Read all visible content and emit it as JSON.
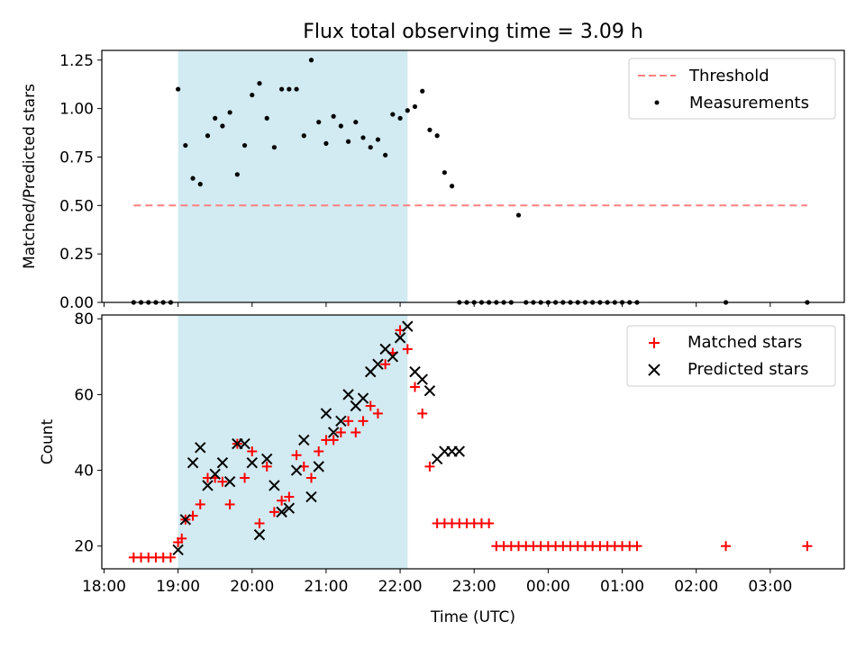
{
  "chart_data": {
    "type": "scatter",
    "title": "Flux total observing time = 3.09 h",
    "xlabel": "Time (UTC)",
    "x_ticks": [
      "18:00",
      "19:00",
      "20:00",
      "21:00",
      "22:00",
      "23:00",
      "00:00",
      "01:00",
      "02:00",
      "03:00"
    ],
    "shaded_interval": {
      "start_hours": 19.0,
      "end_hours": 22.1,
      "color": "#add8e6"
    },
    "colors": {
      "threshold": "#ff8080",
      "measurements": "#000000",
      "matched": "#ff0000",
      "predicted": "#000000",
      "shade": "#add8e6"
    },
    "panels": [
      {
        "name": "ratio",
        "ylabel": "Matched/Predicted stars",
        "ylim": [
          0,
          1.3
        ],
        "yticks": [
          "0.00",
          "0.25",
          "0.50",
          "0.75",
          "1.00",
          "1.25"
        ],
        "ytick_values": [
          0,
          0.25,
          0.5,
          0.75,
          1.0,
          1.25
        ],
        "legend_position": "top-right",
        "threshold": {
          "label": "Threshold",
          "value": 0.5,
          "x_start": 18.4,
          "x_end": 27.5,
          "style": "dashed"
        },
        "measurements": {
          "label": "Measurements",
          "x": [
            18.4,
            18.5,
            18.6,
            18.7,
            18.8,
            18.9,
            19.0,
            19.1,
            19.2,
            19.3,
            19.4,
            19.5,
            19.6,
            19.7,
            19.8,
            19.9,
            20.0,
            20.1,
            20.2,
            20.3,
            20.4,
            20.5,
            20.6,
            20.7,
            20.8,
            20.9,
            21.0,
            21.1,
            21.2,
            21.3,
            21.4,
            21.5,
            21.6,
            21.7,
            21.8,
            21.9,
            22.0,
            22.1,
            22.2,
            22.3,
            22.4,
            22.5,
            22.6,
            22.7,
            22.8,
            22.9,
            23.0,
            23.1,
            23.2,
            23.3,
            23.4,
            23.5,
            23.6,
            23.7,
            23.8,
            23.9,
            24.0,
            24.1,
            24.2,
            24.3,
            24.4,
            24.5,
            24.6,
            24.7,
            24.8,
            24.9,
            25.0,
            25.1,
            25.2,
            26.4,
            27.5
          ],
          "y": [
            0,
            0,
            0,
            0,
            0,
            0,
            1.1,
            0.81,
            0.64,
            0.61,
            0.86,
            0.95,
            0.91,
            0.98,
            0.66,
            0.81,
            1.07,
            1.13,
            0.95,
            0.8,
            1.1,
            1.1,
            1.1,
            0.86,
            1.25,
            0.93,
            0.82,
            0.96,
            0.91,
            0.83,
            0.93,
            0.85,
            0.8,
            0.84,
            0.76,
            0.97,
            0.95,
            0.99,
            1.01,
            1.09,
            0.89,
            0.86,
            0.67,
            0.6,
            0,
            0,
            0,
            0,
            0,
            0,
            0,
            0,
            0.45,
            0,
            0,
            0,
            0,
            0,
            0,
            0,
            0,
            0,
            0,
            0,
            0,
            0,
            0,
            0,
            0,
            0,
            0
          ]
        }
      },
      {
        "name": "counts",
        "ylabel": "Count",
        "ylim": [
          14,
          81
        ],
        "yticks": [
          "20",
          "40",
          "60",
          "80"
        ],
        "ytick_values": [
          20,
          40,
          60,
          80
        ],
        "legend_position": "top-right",
        "matched": {
          "label": "Matched stars",
          "x": [
            18.4,
            18.5,
            18.6,
            18.7,
            18.8,
            18.9,
            19.0,
            19.05,
            19.1,
            19.2,
            19.3,
            19.4,
            19.5,
            19.6,
            19.7,
            19.8,
            19.9,
            20.0,
            20.1,
            20.2,
            20.3,
            20.4,
            20.5,
            20.6,
            20.7,
            20.8,
            20.9,
            21.0,
            21.1,
            21.2,
            21.3,
            21.4,
            21.5,
            21.6,
            21.7,
            21.8,
            21.9,
            22.0,
            22.1,
            22.2,
            22.3,
            22.4,
            22.5,
            22.6,
            22.7,
            22.8,
            22.9,
            23.0,
            23.1,
            23.2,
            23.3,
            23.4,
            23.5,
            23.6,
            23.7,
            23.8,
            23.9,
            24.0,
            24.1,
            24.2,
            24.3,
            24.4,
            24.5,
            24.6,
            24.7,
            24.8,
            24.9,
            25.0,
            25.1,
            25.2,
            26.4,
            27.5
          ],
          "y": [
            17,
            17,
            17,
            17,
            17,
            17,
            21,
            22,
            27,
            28,
            31,
            38,
            38,
            37,
            31,
            47,
            38,
            45,
            26,
            41,
            29,
            32,
            33,
            44,
            41,
            38,
            45,
            48,
            48,
            50,
            53,
            50,
            53,
            57,
            55,
            68,
            71,
            77,
            72,
            62,
            55,
            41,
            26,
            26,
            26,
            26,
            26,
            26,
            26,
            26,
            20,
            20,
            20,
            20,
            20,
            20,
            20,
            20,
            20,
            20,
            20,
            20,
            20,
            20,
            20,
            20,
            20,
            20,
            20,
            20,
            20,
            20
          ]
        },
        "predicted": {
          "label": "Predicted stars",
          "x": [
            19.0,
            19.1,
            19.2,
            19.3,
            19.4,
            19.5,
            19.6,
            19.7,
            19.8,
            19.9,
            20.0,
            20.1,
            20.2,
            20.3,
            20.4,
            20.5,
            20.6,
            20.7,
            20.8,
            20.9,
            21.0,
            21.1,
            21.2,
            21.3,
            21.4,
            21.5,
            21.6,
            21.7,
            21.8,
            21.9,
            22.0,
            22.1,
            22.2,
            22.3,
            22.4,
            22.5,
            22.6,
            22.7,
            22.8
          ],
          "y": [
            19,
            27,
            42,
            46,
            36,
            39,
            42,
            37,
            47,
            47,
            42,
            23,
            43,
            36,
            29,
            30,
            40,
            48,
            33,
            41,
            55,
            50,
            53,
            60,
            57,
            59,
            66,
            68,
            72,
            70,
            75,
            78,
            66,
            64,
            61,
            43,
            45,
            45,
            45
          ]
        }
      }
    ]
  }
}
